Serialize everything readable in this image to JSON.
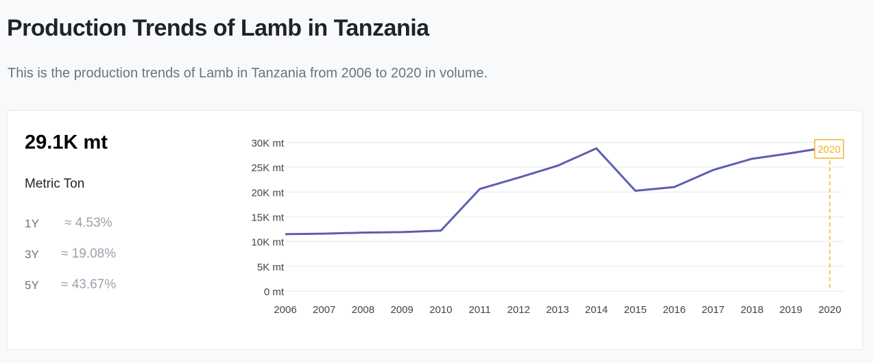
{
  "header": {
    "title": "Production Trends of Lamb in Tanzania",
    "subtitle": "This is the production trends of Lamb in Tanzania from 2006 to 2020 in volume."
  },
  "summary": {
    "value": "29.1K mt",
    "unit": "Metric Ton",
    "changes": [
      {
        "period": "1Y",
        "value": "≈ 4.53%"
      },
      {
        "period": "3Y",
        "value": "≈ 19.08%"
      },
      {
        "period": "5Y",
        "value": "≈ 43.67%"
      }
    ]
  },
  "chart_data": {
    "type": "line",
    "x": [
      2006,
      2007,
      2008,
      2009,
      2010,
      2011,
      2012,
      2013,
      2014,
      2015,
      2016,
      2017,
      2018,
      2019,
      2020
    ],
    "values": [
      11.5,
      11.6,
      11.8,
      11.9,
      12.2,
      20.6,
      22.9,
      25.3,
      28.8,
      20.25,
      21.0,
      24.44,
      26.7,
      27.84,
      29.1
    ],
    "yunit": "K mt",
    "ylim": [
      0,
      30
    ],
    "yticks": [
      "0 mt",
      "5K mt",
      "10K mt",
      "15K mt",
      "20K mt",
      "25K mt",
      "30K mt"
    ],
    "xticks": [
      "2006",
      "2007",
      "2008",
      "2009",
      "2010",
      "2011",
      "2012",
      "2013",
      "2014",
      "2015",
      "2016",
      "2017",
      "2018",
      "2019",
      "2020"
    ],
    "highlight": "2020",
    "grid": true,
    "line_color": "#5c5db1",
    "highlight_color": "#f0b429"
  }
}
